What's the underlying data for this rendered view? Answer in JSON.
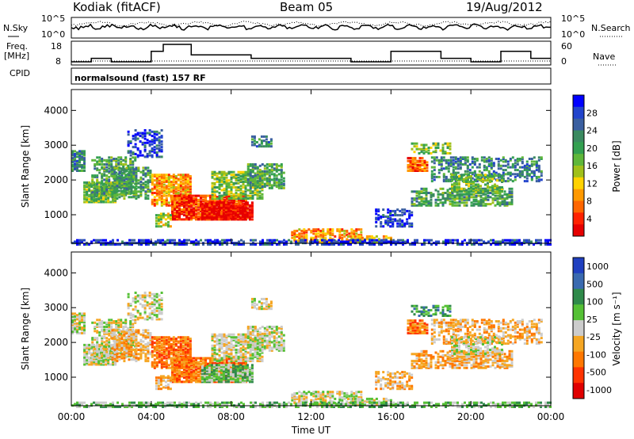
{
  "header": {
    "station": "Kodiak (fitACF)",
    "beam": "Beam 05",
    "date": "19/Aug/2012"
  },
  "top_panels": {
    "nsky_label": "N.Sky",
    "nsearch_label": "N.Search",
    "freq_label_1": "Freq.",
    "freq_label_2": "[MHz]",
    "nave_label": "Nave",
    "cpid_label": "CPID",
    "noise_ticks_left": [
      "10^5",
      "10^0"
    ],
    "noise_ticks_right": [
      "10^5",
      "10^0"
    ],
    "freq_ticks": [
      "18",
      "8"
    ],
    "nave_ticks": [
      "60",
      "0"
    ],
    "cpid_text": "normalsound (fast) 157 RF"
  },
  "chart_data": [
    {
      "type": "heatmap",
      "name": "power",
      "ylabel": "Slant Range [km]",
      "ylim": [
        180,
        4600
      ],
      "yticks": [
        "1000",
        "2000",
        "3000",
        "4000"
      ],
      "colorbar_label": "Power [dB]",
      "colorbar_ticks": [
        "4",
        "8",
        "12",
        "16",
        "20",
        "24",
        "28"
      ],
      "colorscale": [
        "#0000ff",
        "#2244cc",
        "#3a5fa0",
        "#3b8a60",
        "#33a050",
        "#5fb73a",
        "#a0c01a",
        "#ffd200",
        "#ff9900",
        "#ff6600",
        "#ff2200",
        "#e60000"
      ]
    },
    {
      "type": "heatmap",
      "name": "velocity",
      "ylabel": "Slant Range [km]",
      "ylim": [
        180,
        4600
      ],
      "yticks": [
        "1000",
        "2000",
        "3000",
        "4000"
      ],
      "colorbar_label": "Velocity [m s⁻¹]",
      "colorbar_ticks": [
        "1000",
        "500",
        "100",
        "25",
        "-25",
        "-100",
        "-500",
        "-1000"
      ],
      "colorscale": [
        "#2040c0",
        "#3a6ab0",
        "#2f8a4a",
        "#55c035",
        "#cccccc",
        "#f5a623",
        "#ff7700",
        "#ff3300",
        "#e00000"
      ]
    }
  ],
  "time_axis": {
    "xlabel": "Time UT",
    "ticks": [
      "00:00",
      "04:00",
      "08:00",
      "12:00",
      "16:00",
      "20:00",
      "00:00"
    ]
  }
}
